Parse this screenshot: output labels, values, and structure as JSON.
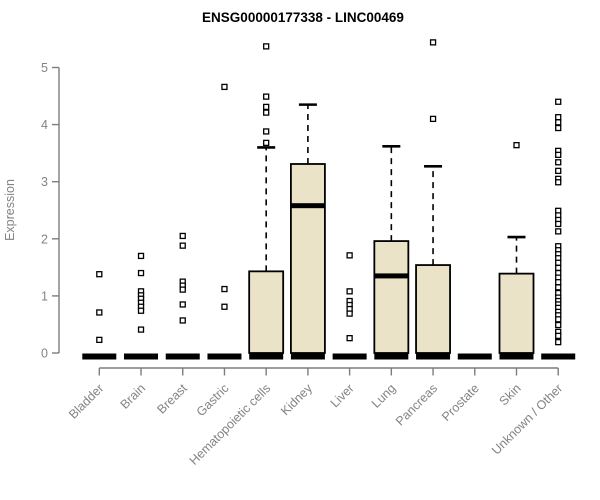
{
  "title": "ENSG00000177338 - LINC00469",
  "chart_data": {
    "type": "boxplot",
    "title": "ENSG00000177338 - LINC00469",
    "xlabel": "",
    "ylabel": "Expression",
    "ylim": [
      0,
      5.5
    ],
    "yticks": [
      0,
      1,
      2,
      3,
      4,
      5
    ],
    "grid": false,
    "legend": "none",
    "colors": {
      "box_fill": "#ebe3c7",
      "box_border": "#000000",
      "median": "#000000",
      "axis_line": "#7d7d7d",
      "axis_text": "#838383",
      "title_text": "#000000",
      "outlier_fill": "#ffffff",
      "outlier_border": "#000000"
    },
    "categories": [
      "Bladder",
      "Brain",
      "Breast",
      "Gastric",
      "Hematopoietic cells",
      "Kidney",
      "Liver",
      "Lung",
      "Pancreas",
      "Prostate",
      "Skin",
      "Unknown / Other"
    ],
    "series": [
      {
        "category": "Bladder",
        "q1": 0,
        "median": 0,
        "q3": 0,
        "whisker_low": 0,
        "whisker_high": 0,
        "outliers": [
          1.38,
          0.71,
          0.23
        ]
      },
      {
        "category": "Brain",
        "q1": 0,
        "median": 0,
        "q3": 0,
        "whisker_low": 0,
        "whisker_high": 0,
        "outliers": [
          1.7,
          1.4,
          1.08,
          1.01,
          0.95,
          0.88,
          0.81,
          0.74,
          0.41
        ]
      },
      {
        "category": "Breast",
        "q1": 0,
        "median": 0,
        "q3": 0,
        "whisker_low": 0,
        "whisker_high": 0,
        "outliers": [
          2.05,
          1.88,
          1.25,
          1.18,
          1.11,
          0.85,
          0.57
        ]
      },
      {
        "category": "Gastric",
        "q1": 0,
        "median": 0,
        "q3": 0,
        "whisker_low": 0,
        "whisker_high": 0,
        "outliers": [
          4.66,
          1.12,
          0.81
        ]
      },
      {
        "category": "Hematopoietic cells",
        "q1": 0,
        "median": 0,
        "q3": 1.43,
        "whisker_low": 0,
        "whisker_high": 3.6,
        "outliers": [
          5.37,
          4.49,
          4.31,
          4.21,
          3.88,
          3.68
        ]
      },
      {
        "category": "Kidney",
        "q1": 0,
        "median": 2.58,
        "q3": 3.31,
        "whisker_low": 0,
        "whisker_high": 4.35,
        "outliers": []
      },
      {
        "category": "Liver",
        "q1": 0,
        "median": 0,
        "q3": 0,
        "whisker_low": 0,
        "whisker_high": 0,
        "outliers": [
          1.71,
          1.08,
          0.91,
          0.84,
          0.77,
          0.69,
          0.26
        ]
      },
      {
        "category": "Lung",
        "q1": 0,
        "median": 1.35,
        "q3": 1.96,
        "whisker_low": 0,
        "whisker_high": 3.62,
        "outliers": []
      },
      {
        "category": "Pancreas",
        "q1": 0,
        "median": 0,
        "q3": 1.54,
        "whisker_low": 0,
        "whisker_high": 3.27,
        "outliers": [
          5.44,
          4.1
        ]
      },
      {
        "category": "Prostate",
        "q1": 0,
        "median": 0,
        "q3": 0,
        "whisker_low": 0,
        "whisker_high": 0,
        "outliers": []
      },
      {
        "category": "Skin",
        "q1": 0,
        "median": 0,
        "q3": 1.39,
        "whisker_low": 0,
        "whisker_high": 2.03,
        "outliers": [
          3.64
        ]
      },
      {
        "category": "Unknown / Other",
        "q1": 0,
        "median": 0,
        "q3": 0,
        "whisker_low": 0,
        "whisker_high": 0,
        "outliers": [
          4.4,
          4.13,
          4.04,
          3.94,
          3.54,
          3.47,
          3.34,
          3.19,
          3.05,
          2.99,
          2.49,
          2.41,
          2.33,
          2.26,
          2.13,
          1.87,
          1.8,
          1.73,
          1.66,
          1.58,
          1.49,
          1.4,
          1.32,
          1.24,
          1.15,
          1.05,
          0.97,
          0.91,
          0.85,
          0.79,
          0.72,
          0.66,
          0.59,
          0.49,
          0.37,
          0.3,
          0.19
        ]
      }
    ]
  }
}
